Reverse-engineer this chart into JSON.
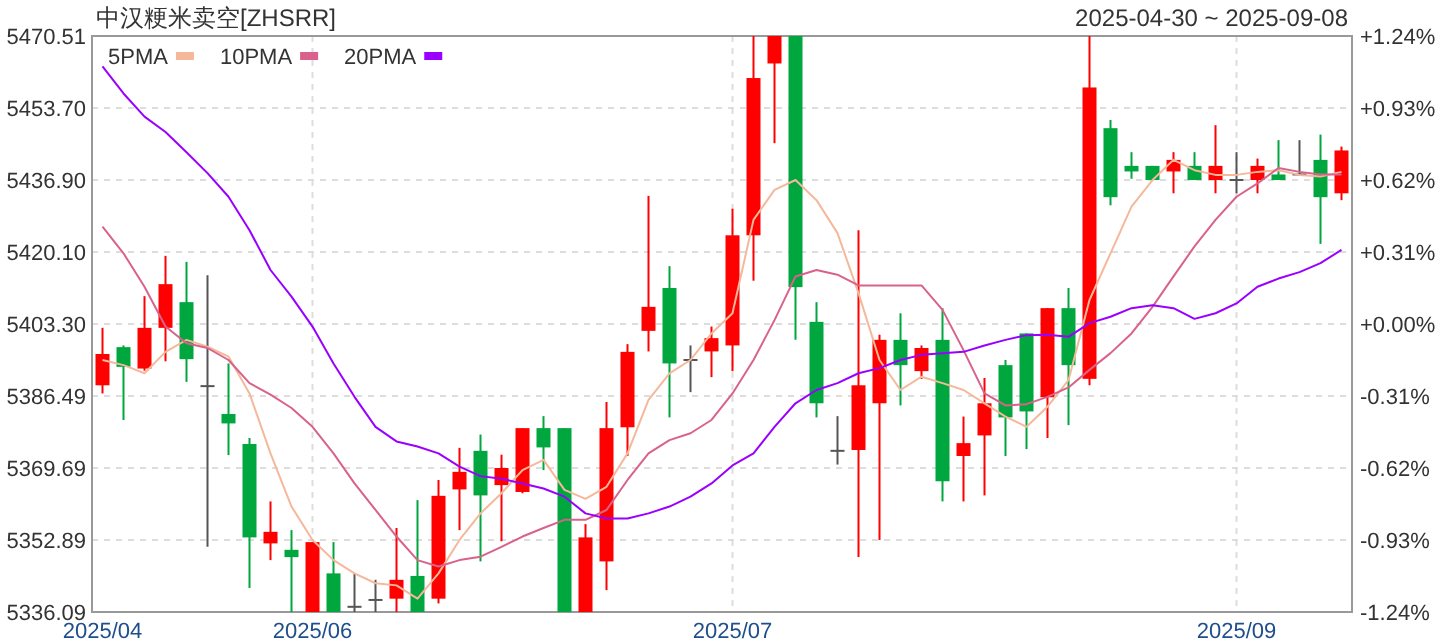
{
  "chart_data": {
    "type": "candlestick",
    "title": "中汉粳米卖空[ZHSRR]",
    "subtitle": "2025-04-30 ~ 2025-09-08",
    "categories": [
      "2025/04",
      null,
      null,
      null,
      null,
      null,
      null,
      null,
      null,
      null,
      "2025/06",
      null,
      null,
      null,
      null,
      null,
      null,
      null,
      null,
      null,
      null,
      null,
      null,
      null,
      null,
      null,
      null,
      null,
      null,
      null,
      "2025/07",
      null,
      null,
      null,
      null,
      null,
      null,
      null,
      null,
      null,
      null,
      null,
      null,
      null,
      null,
      null,
      null,
      null,
      null,
      null,
      null,
      null,
      null,
      null,
      "2025/09",
      null,
      null,
      null,
      null,
      null
    ],
    "ohlc": [
      [
        5389.0,
        5402.4,
        5387.1,
        5396.3
      ],
      [
        5397.9,
        5398.3,
        5380.9,
        5393.3
      ],
      [
        5392.9,
        5409.8,
        5392.4,
        5402.4
      ],
      [
        5402.4,
        5419.2,
        5394.6,
        5412.6
      ],
      [
        5408.4,
        5417.8,
        5389.8,
        5395.1
      ],
      [
        5388.8,
        5414.7,
        5351.3,
        5388.8
      ],
      [
        5382.3,
        5394.1,
        5372.7,
        5380.1
      ],
      [
        5375.3,
        5376.7,
        5341.7,
        5353.5
      ],
      [
        5352.1,
        5361.9,
        5348.2,
        5354.8
      ],
      [
        5350.6,
        5355.2,
        5336.09,
        5348.9
      ],
      [
        5336.09,
        5352.4,
        5336.09,
        5352.4
      ],
      [
        5345.1,
        5352.4,
        5336.09,
        5336.09
      ],
      [
        5337.3,
        5345.1,
        5336.09,
        5337.3
      ],
      [
        5338.9,
        5343.6,
        5336.09,
        5338.9
      ],
      [
        5339.2,
        5355.7,
        5336.09,
        5343.6
      ],
      [
        5344.5,
        5362.2,
        5336.09,
        5336.09
      ],
      [
        5339.2,
        5366.9,
        5338.1,
        5363.2
      ],
      [
        5364.7,
        5374.4,
        5355.2,
        5368.8
      ],
      [
        5373.7,
        5377.5,
        5347.9,
        5363.3
      ],
      [
        5365.7,
        5372.8,
        5352.6,
        5369.7
      ],
      [
        5364.1,
        5379.0,
        5363.8,
        5379.0
      ],
      [
        5379.0,
        5381.8,
        5369.2,
        5374.5
      ],
      [
        5379.0,
        5379.0,
        5336.09,
        5336.09
      ],
      [
        5336.09,
        5356.6,
        5336.09,
        5353.5
      ],
      [
        5347.9,
        5385.1,
        5341.2,
        5379.0
      ],
      [
        5379.2,
        5398.6,
        5372.5,
        5396.8
      ],
      [
        5401.7,
        5433.2,
        5396.9,
        5407.3
      ],
      [
        5411.7,
        5416.8,
        5381.5,
        5394.1
      ],
      [
        5394.9,
        5398.3,
        5387.4,
        5394.9
      ],
      [
        5396.9,
        5402.7,
        5390.9,
        5400.0
      ],
      [
        5398.3,
        5430.2,
        5392.3,
        5424.0
      ],
      [
        5424.0,
        5470.51,
        5413.4,
        5460.7
      ],
      [
        5464.1,
        5470.51,
        5445.5,
        5470.51
      ],
      [
        5470.51,
        5470.51,
        5399.6,
        5411.9
      ],
      [
        5403.8,
        5408.4,
        5381.5,
        5384.8
      ],
      [
        5373.7,
        5381.8,
        5370.5,
        5373.7
      ],
      [
        5373.9,
        5425.2,
        5348.9,
        5389.0
      ],
      [
        5384.8,
        5400.8,
        5352.9,
        5399.6
      ],
      [
        5399.6,
        5405.8,
        5384.3,
        5393.7
      ],
      [
        5392.3,
        5398.3,
        5390.5,
        5397.7
      ],
      [
        5399.6,
        5407.0,
        5361.9,
        5366.6
      ],
      [
        5372.5,
        5381.7,
        5361.9,
        5375.5
      ],
      [
        5377.3,
        5390.7,
        5363.3,
        5384.8
      ],
      [
        5393.7,
        5394.9,
        5372.5,
        5381.5
      ],
      [
        5401.1,
        5401.1,
        5374.1,
        5382.9
      ],
      [
        5386.2,
        5407.0,
        5376.7,
        5407.0
      ],
      [
        5407.0,
        5411.7,
        5379.7,
        5393.7
      ],
      [
        5390.5,
        5470.51,
        5389.0,
        5458.5
      ],
      [
        5449.0,
        5450.9,
        5431.0,
        5432.9
      ],
      [
        5440.2,
        5443.4,
        5437.2,
        5438.9
      ],
      [
        5440.2,
        5440.2,
        5436.9,
        5436.9
      ],
      [
        5438.9,
        5443.4,
        5433.8,
        5441.6
      ],
      [
        5440.2,
        5443.4,
        5436.9,
        5436.9
      ],
      [
        5436.9,
        5449.7,
        5433.8,
        5440.2
      ],
      [
        5436.9,
        5443.4,
        5433.8,
        5436.9
      ],
      [
        5436.9,
        5441.9,
        5433.8,
        5440.2
      ],
      [
        5438.2,
        5446.2,
        5436.9,
        5436.9
      ],
      [
        5438.2,
        5446.2,
        5438.2,
        5438.2
      ],
      [
        5441.6,
        5447.5,
        5422.0,
        5432.9
      ],
      [
        5433.8,
        5444.7,
        5432.2,
        5443.8
      ]
    ],
    "series": [
      {
        "name": "5PMA",
        "type": "line",
        "color": "#f5b89a",
        "values": [
          5394.9,
          5393.7,
          5391.8,
          5396.8,
          5399.6,
          5398.0,
          5395.7,
          5387.1,
          5373.1,
          5360.7,
          5352.9,
          5348.2,
          5345.1,
          5342.8,
          5342.3,
          5339.2,
          5345.1,
          5352.9,
          5359.1,
          5363.8,
          5369.2,
          5371.6,
          5364.6,
          5362.5,
          5365.3,
          5373.1,
          5385.6,
          5391.8,
          5394.9,
          5401.1,
          5405.8,
          5427.6,
          5434.6,
          5436.9,
          5432.2,
          5424.5,
          5410.5,
          5394.9,
          5387.9,
          5391.0,
          5389.5,
          5387.9,
          5384.8,
          5381.7,
          5379.3,
          5384.0,
          5390.2,
          5408.9,
          5419.8,
          5430.7,
          5436.9,
          5441.6,
          5439.2,
          5438.1,
          5438.1,
          5438.8,
          5439.2,
          5438.1,
          5437.7,
          5438.8
        ]
      },
      {
        "name": "10PMA",
        "type": "line",
        "color": "#d9628c",
        "values": [
          5426.0,
          5419.8,
          5412.0,
          5402.7,
          5398.8,
          5397.7,
          5394.9,
          5389.5,
          5386.8,
          5383.7,
          5379.3,
          5373.1,
          5366.1,
          5359.9,
          5353.7,
          5348.2,
          5346.7,
          5348.2,
          5349.0,
          5351.3,
          5353.7,
          5355.7,
          5357.6,
          5357.6,
          5359.9,
          5366.9,
          5373.1,
          5376.2,
          5377.8,
          5380.9,
          5387.1,
          5394.9,
          5404.2,
          5414.4,
          5415.9,
          5414.8,
          5412.3,
          5412.3,
          5412.3,
          5412.3,
          5406.6,
          5397.2,
          5387.1,
          5384.3,
          5384.6,
          5386.3,
          5388.5,
          5392.6,
          5396.5,
          5401.1,
          5407.3,
          5414.4,
          5421.4,
          5427.6,
          5433.0,
          5436.1,
          5439.7,
          5438.8,
          5438.2,
          5438.2
        ]
      },
      {
        "name": "20PMA",
        "type": "line",
        "color": "#9900ff",
        "values": [
          5463.4,
          5457.1,
          5451.7,
          5448.1,
          5443.4,
          5438.5,
          5433.0,
          5425.2,
          5415.9,
          5409.7,
          5402.7,
          5394.1,
          5386.3,
          5379.3,
          5375.9,
          5374.7,
          5373.1,
          5370.0,
          5367.8,
          5367.2,
          5366.1,
          5364.9,
          5363.0,
          5359.1,
          5357.9,
          5357.9,
          5359.1,
          5360.7,
          5363.0,
          5366.1,
          5370.3,
          5373.1,
          5379.3,
          5384.8,
          5387.9,
          5389.5,
          5391.8,
          5393.0,
          5394.9,
          5396.1,
          5396.5,
          5396.8,
          5398.3,
          5399.6,
          5400.7,
          5400.8,
          5400.3,
          5403.5,
          5405.0,
          5407.0,
          5407.7,
          5407.0,
          5404.5,
          5405.8,
          5408.1,
          5412.0,
          5413.9,
          5415.4,
          5417.5,
          5420.6
        ]
      }
    ],
    "ylim": [
      5336.09,
      5470.51
    ],
    "yticks": [
      {
        "value": 5336.09,
        "label": "5336.09"
      },
      {
        "value": 5352.89,
        "label": "5352.89"
      },
      {
        "value": 5369.69,
        "label": "5369.69"
      },
      {
        "value": 5386.49,
        "label": "5386.49"
      },
      {
        "value": 5403.3,
        "label": "5403.30"
      },
      {
        "value": 5420.1,
        "label": "5420.10"
      },
      {
        "value": 5436.9,
        "label": "5436.90"
      },
      {
        "value": 5453.7,
        "label": "5453.70"
      },
      {
        "value": 5470.51,
        "label": "5470.51"
      }
    ],
    "y2lim": [
      -1.24,
      1.24
    ],
    "y2ticks": [
      {
        "value": -1.24,
        "label": "-1.24%"
      },
      {
        "value": -0.93,
        "label": "-0.93%"
      },
      {
        "value": -0.62,
        "label": "-0.62%"
      },
      {
        "value": -0.31,
        "label": "-0.31%"
      },
      {
        "value": 0,
        "label": "+0.00%"
      },
      {
        "value": 0.31,
        "label": "+0.31%"
      },
      {
        "value": 0.62,
        "label": "+0.62%"
      },
      {
        "value": 0.93,
        "label": "+0.93%"
      },
      {
        "value": 1.24,
        "label": "+1.24%"
      }
    ],
    "grid": true,
    "legend": "top left"
  }
}
